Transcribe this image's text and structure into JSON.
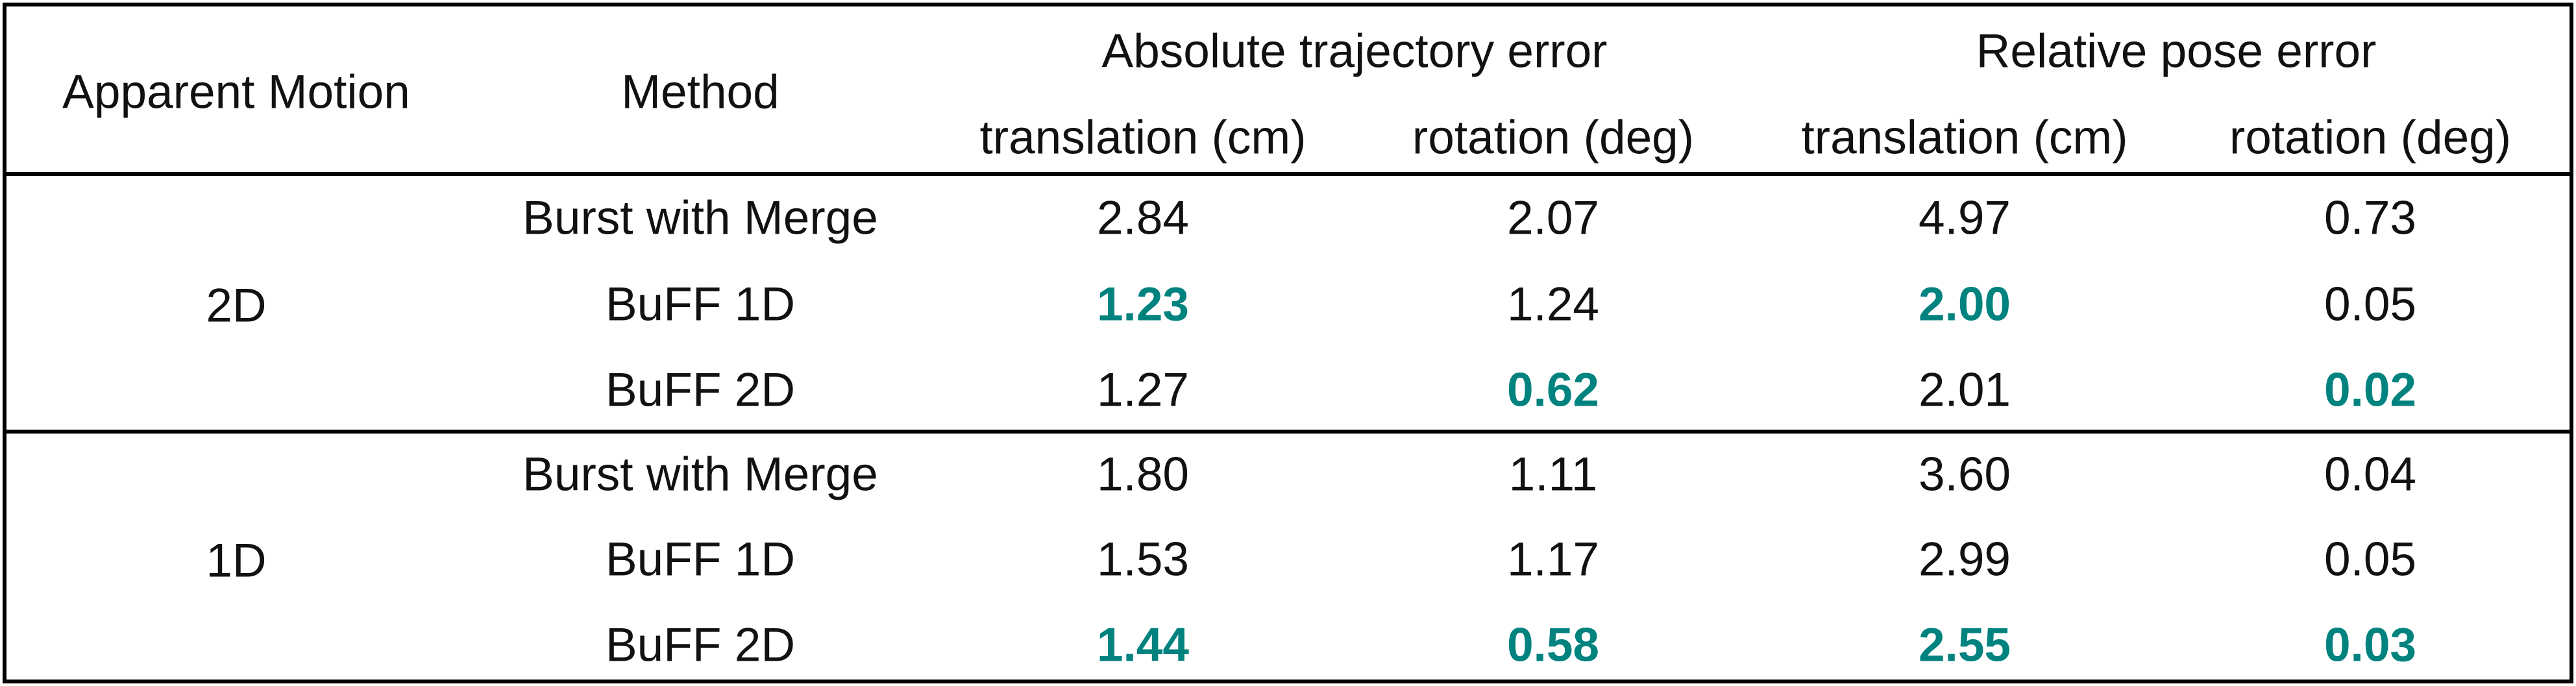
{
  "table": {
    "header": {
      "apparent_motion": "Apparent Motion",
      "method": "Method",
      "group_ate": "Absolute trajectory error",
      "group_rpe": "Relative pose error",
      "ate_translation": "translation (cm)",
      "ate_rotation": "rotation (deg)",
      "rpe_translation": "translation (cm)",
      "rpe_rotation": "rotation (deg)"
    },
    "groups": [
      {
        "motion": "2D",
        "rows": [
          {
            "method": "Burst with Merge",
            "ate_translation": "2.84",
            "ate_rotation": "2.07",
            "rpe_translation": "4.97",
            "rpe_rotation": "0.73"
          },
          {
            "method": "BuFF 1D",
            "ate_translation": "1.23",
            "ate_rotation": "1.24",
            "rpe_translation": "2.00",
            "rpe_rotation": "0.05"
          },
          {
            "method": "BuFF 2D",
            "ate_translation": "1.27",
            "ate_rotation": "0.62",
            "rpe_translation": "2.01",
            "rpe_rotation": "0.02"
          }
        ]
      },
      {
        "motion": "1D",
        "rows": [
          {
            "method": "Burst with Merge",
            "ate_translation": "1.80",
            "ate_rotation": "1.11",
            "rpe_translation": "3.60",
            "rpe_rotation": "0.04"
          },
          {
            "method": "BuFF 1D",
            "ate_translation": "1.53",
            "ate_rotation": "1.17",
            "rpe_translation": "2.99",
            "rpe_rotation": "0.05"
          },
          {
            "method": "BuFF 2D",
            "ate_translation": "1.44",
            "ate_rotation": "0.58",
            "rpe_translation": "2.55",
            "rpe_rotation": "0.03"
          }
        ]
      }
    ],
    "highlight_color": "#00827f"
  }
}
